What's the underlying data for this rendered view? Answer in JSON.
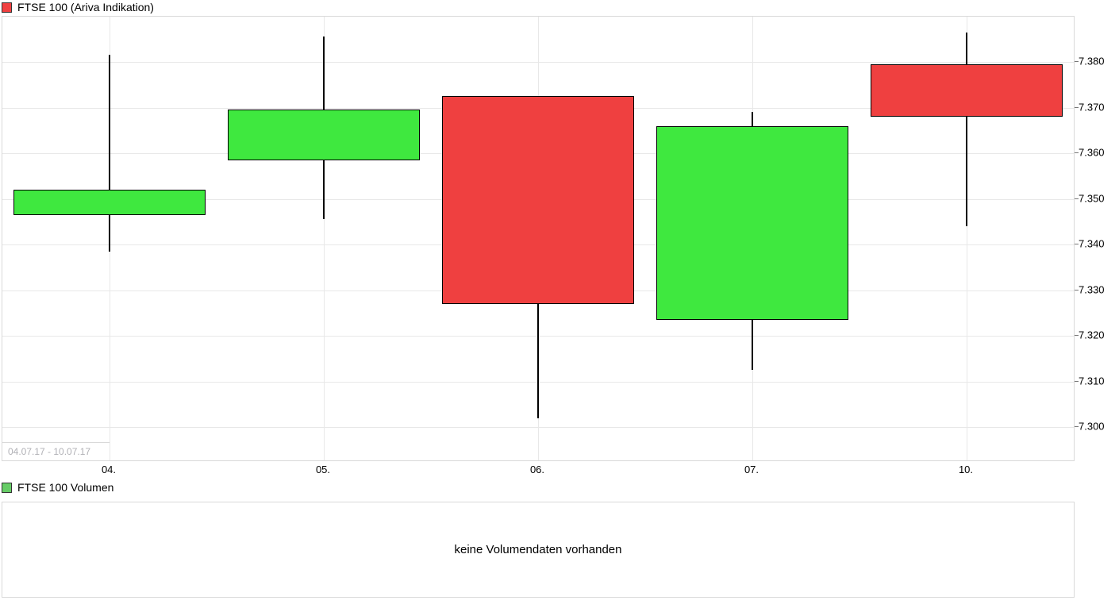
{
  "header": {
    "title": "FTSE 100 (Ariva Indikation)"
  },
  "volume_section": {
    "title": "FTSE 100 Volumen",
    "message": "keine Volumendaten vorhanden"
  },
  "footer": {
    "date_range": "04.07.17 - 10.07.17"
  },
  "colors": {
    "up": "#3fe83f",
    "down": "#ef4040",
    "legend_main_swatch": "#f04040",
    "legend_volume_swatch": "#66cc66",
    "grid": "#e8e8e8",
    "panel_border": "#d9d9d9",
    "candle_border": "#000000",
    "wick": "#000000",
    "range_text": "#b1b1b6"
  },
  "chart_data": {
    "type": "candlestick",
    "title": "FTSE 100 (Ariva Indikation)",
    "x_labels": [
      "04.",
      "05.",
      "06.",
      "07.",
      "10."
    ],
    "series": [
      {
        "date": "04.",
        "open": 7346.5,
        "high": 7381.5,
        "low": 7338.5,
        "close": 7352
      },
      {
        "date": "05.",
        "open": 7358.5,
        "high": 7385.5,
        "low": 7345.5,
        "close": 7369.5
      },
      {
        "date": "06.",
        "open": 7372.5,
        "high": 7372.5,
        "low": 7302,
        "close": 7327
      },
      {
        "date": "07.",
        "open": 7323.5,
        "high": 7369,
        "low": 7312.5,
        "close": 7366
      },
      {
        "date": "10.",
        "open": 7379.5,
        "high": 7386.5,
        "low": 7344,
        "close": 7368
      }
    ],
    "y_ticks": [
      {
        "value": 7300,
        "label": "7.300"
      },
      {
        "value": 7310,
        "label": "7.310"
      },
      {
        "value": 7320,
        "label": "7.320"
      },
      {
        "value": 7330,
        "label": "7.330"
      },
      {
        "value": 7340,
        "label": "7.340"
      },
      {
        "value": 7350,
        "label": "7.350"
      },
      {
        "value": 7360,
        "label": "7.360"
      },
      {
        "value": 7370,
        "label": "7.370"
      },
      {
        "value": 7380,
        "label": "7.380"
      }
    ],
    "ylim": [
      7292.5,
      7390
    ],
    "grid": true,
    "legend_position": "top-left",
    "y_axis_side": "right"
  }
}
